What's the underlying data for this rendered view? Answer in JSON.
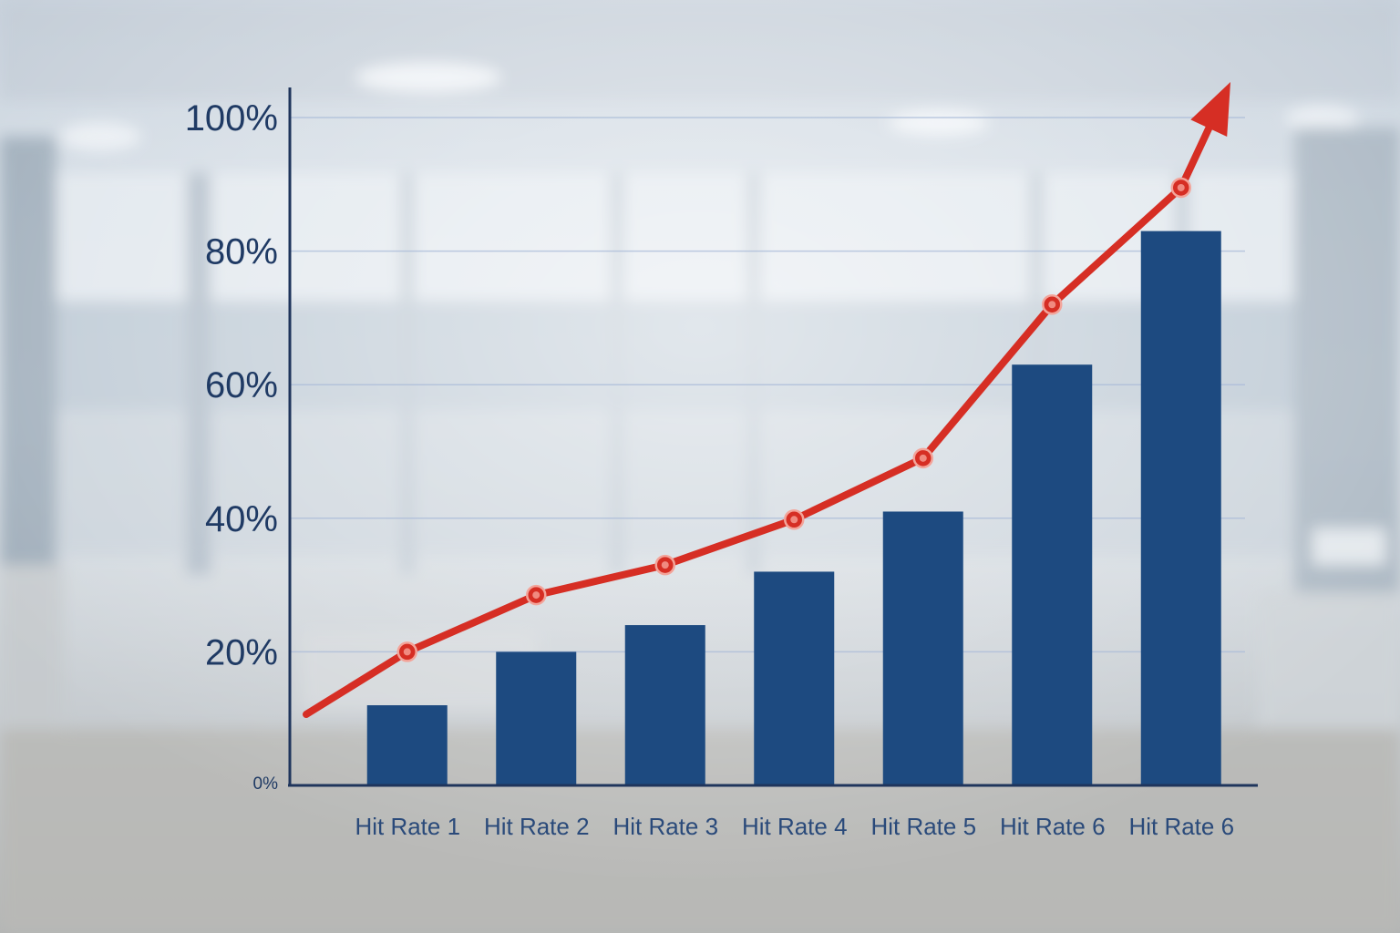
{
  "chart_data": {
    "type": "bar",
    "categories": [
      "Hit Rate 1",
      "Hit Rate 2",
      "Hit Rate 3",
      "Hit Rate 4",
      "Hit Rate 5",
      "Hit Rate 6",
      "Hit Rate 6"
    ],
    "series": [
      {
        "type": "bar",
        "values": [
          12,
          20,
          24,
          32,
          41,
          63,
          83
        ],
        "color": "#1d4a80"
      },
      {
        "type": "line",
        "values": [
          20,
          28.5,
          33,
          39.8,
          49,
          72,
          89.5
        ],
        "color": "#d62e24",
        "end_arrow": true
      }
    ],
    "y_tick_labels": [
      "0%",
      "20%",
      "40%",
      "60%",
      "80%",
      "100%"
    ],
    "ylim": [
      0,
      100
    ],
    "grid": true,
    "xlabel": "",
    "ylabel": "",
    "title": ""
  }
}
